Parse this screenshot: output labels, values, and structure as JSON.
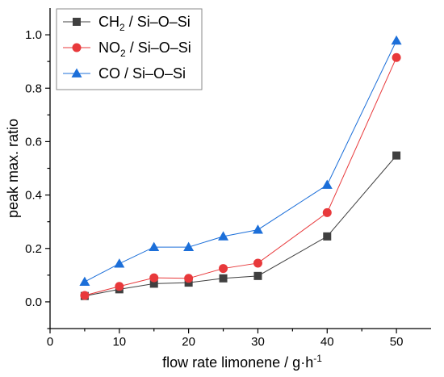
{
  "chart_data": {
    "type": "line",
    "xlabel": "flow rate limonene / g·h",
    "xlabel_superscript": "-1",
    "ylabel": "peak max. ratio",
    "xlim": [
      0,
      55
    ],
    "ylim": [
      -0.1,
      1.1
    ],
    "x_ticks": [
      0,
      10,
      20,
      30,
      40,
      50
    ],
    "x_tick_labels": [
      "0",
      "10",
      "20",
      "30",
      "40",
      "50"
    ],
    "y_ticks": [
      0.0,
      0.2,
      0.4,
      0.6,
      0.8,
      1.0
    ],
    "y_tick_labels": [
      "0.0",
      "0.2",
      "0.4",
      "0.6",
      "0.8",
      "1.0"
    ],
    "x": [
      5,
      10,
      15,
      20,
      25,
      30,
      40,
      50
    ],
    "grid": false,
    "legend_position": "top-left",
    "series": [
      {
        "name": "CH2 / Si–O–Si",
        "name_main": "CH",
        "name_sub": "2",
        "name_rest": " / Si–O–Si",
        "marker": "square",
        "color": "#404040",
        "values": [
          0.022,
          0.047,
          0.068,
          0.072,
          0.088,
          0.097,
          0.245,
          0.548
        ]
      },
      {
        "name": "NO2 / Si–O–Si",
        "name_main": "NO",
        "name_sub": "2",
        "name_rest": " / Si–O–Si",
        "marker": "circle",
        "color": "#e8393b",
        "values": [
          0.024,
          0.058,
          0.09,
          0.088,
          0.125,
          0.145,
          0.334,
          0.915
        ]
      },
      {
        "name": "CO / Si–O–Si",
        "name_main": "CO / Si–O–Si",
        "name_sub": "",
        "name_rest": "",
        "marker": "triangle",
        "color": "#1c6fd9",
        "values": [
          0.075,
          0.143,
          0.205,
          0.205,
          0.245,
          0.27,
          0.438,
          0.978
        ]
      }
    ]
  }
}
